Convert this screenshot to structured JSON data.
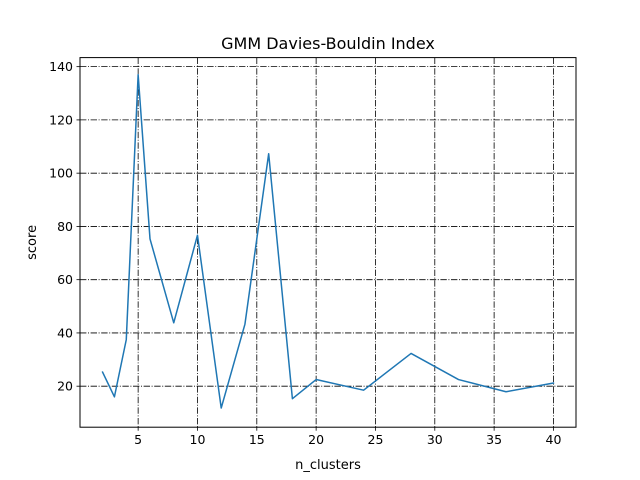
{
  "chart_data": {
    "type": "line",
    "title": "GMM Davies-Bouldin Index",
    "xlabel": "n_clusters",
    "ylabel": "score",
    "xlim": [
      0.1,
      41.9
    ],
    "ylim": [
      4.6,
      143.4
    ],
    "xticks": [
      5,
      10,
      15,
      20,
      25,
      30,
      35,
      40
    ],
    "yticks": [
      20,
      40,
      60,
      80,
      100,
      120,
      140
    ],
    "grid": true,
    "grid_style": "dashdot",
    "legend": false,
    "series": [
      {
        "color": "#1f77b4",
        "x": [
          2,
          3,
          4,
          5,
          6,
          8,
          10,
          12,
          14,
          16,
          18,
          20,
          24,
          28,
          32,
          36,
          40
        ],
        "y": [
          25.3,
          16.0,
          37.5,
          137.0,
          75.3,
          43.8,
          76.7,
          11.8,
          43.3,
          107.3,
          15.3,
          22.5,
          18.5,
          32.3,
          22.5,
          17.9,
          21.2
        ]
      }
    ]
  }
}
